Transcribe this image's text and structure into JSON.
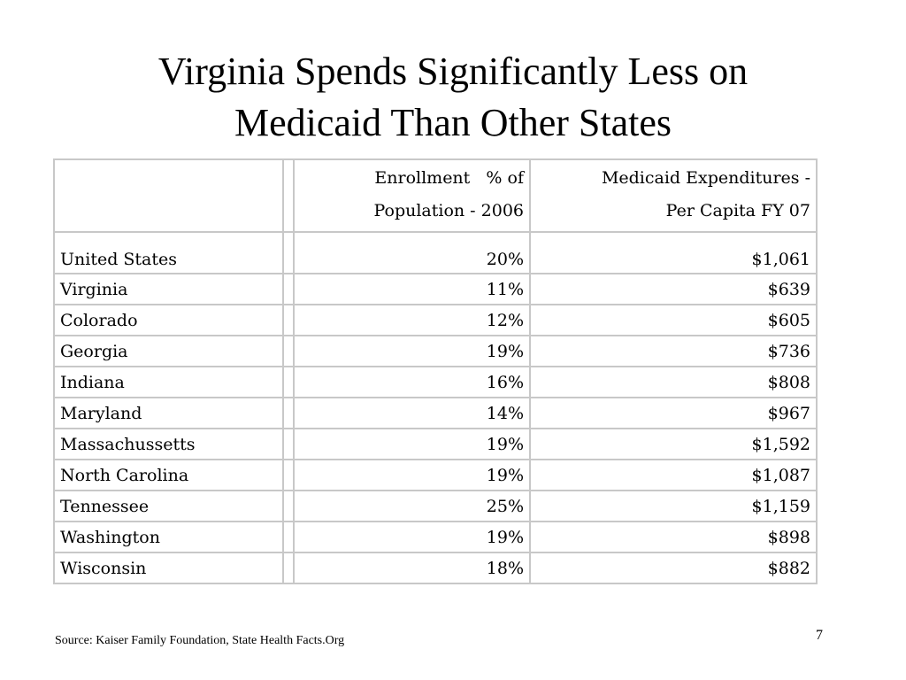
{
  "slide": {
    "title_line1": "Virginia Spends Significantly Less on",
    "title_line2": "Medicaid Than Other States",
    "source": "Source: Kaiser Family Foundation, State Health Facts.Org",
    "page_number": "7"
  },
  "table": {
    "headers": {
      "enrollment_line1": "Enrollment   % of",
      "enrollment_line2": "Population - 2006",
      "expenditure_line1": "Medicaid Expenditures -",
      "expenditure_line2": "Per Capita FY 07"
    },
    "rows": [
      {
        "state": "United States",
        "enrollment": "20%",
        "expenditure": "$1,061"
      },
      {
        "state": "Virginia",
        "enrollment": "11%",
        "expenditure": "$639"
      },
      {
        "state": "Colorado",
        "enrollment": "12%",
        "expenditure": "$605"
      },
      {
        "state": "Georgia",
        "enrollment": "19%",
        "expenditure": "$736"
      },
      {
        "state": "Indiana",
        "enrollment": "16%",
        "expenditure": "$808"
      },
      {
        "state": "Maryland",
        "enrollment": "14%",
        "expenditure": "$967"
      },
      {
        "state": "Massachussetts",
        "enrollment": "19%",
        "expenditure": "$1,592"
      },
      {
        "state": "North Carolina",
        "enrollment": "19%",
        "expenditure": "$1,087"
      },
      {
        "state": "Tennessee",
        "enrollment": "25%",
        "expenditure": "$1,159"
      },
      {
        "state": "Washington",
        "enrollment": "19%",
        "expenditure": "$898"
      },
      {
        "state": "Wisconsin",
        "enrollment": "18%",
        "expenditure": "$882"
      }
    ]
  }
}
